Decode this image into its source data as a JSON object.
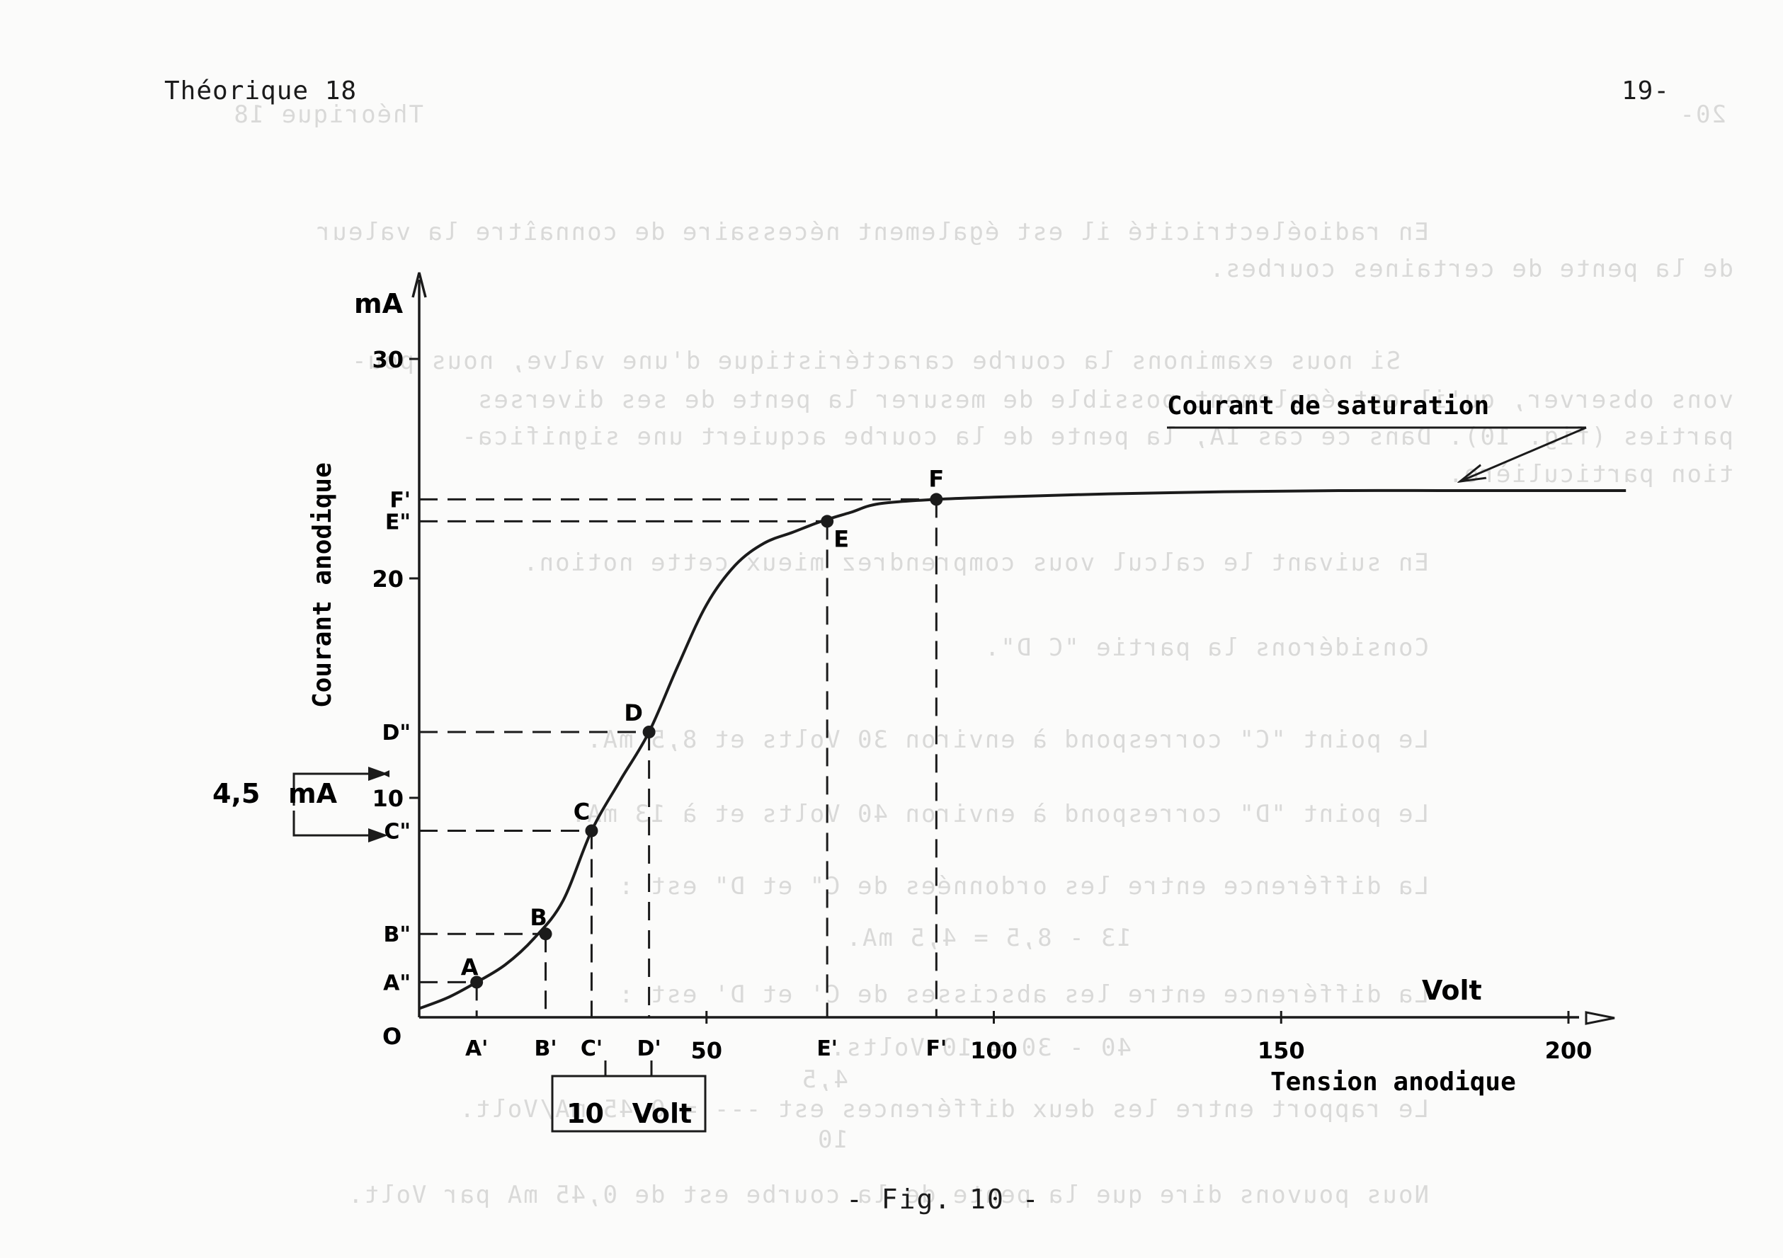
{
  "header": {
    "left": "Théorique 18",
    "right": "19-"
  },
  "bleedthrough": {
    "page_header_left": "Théorique 18",
    "page_header_right": "20-",
    "lines": [
      "En radioélectricité il est également nécessaire de connaître la valeur",
      "de la pente de certaines courbes.",
      "Si nous examinons la courbe caractéristique d'une valve, nous pou-",
      "vons observer, qu'il est également possible de mesurer la pente de ses diverses",
      "parties (fig. 10). Dans ce cas IA, la pente de la courbe acquiert une significa-",
      "tion particulière.",
      "En suivant le calcul vous comprendrez mieux cette notion.",
      "Considérons la partie \"C D\".",
      "Le point \"C\" correspond à environ 30 Volts et 8,5 mA.",
      "Le point \"D\" correspond à environ 40 Volts et à 13 mA.",
      "La différence entre les ordonnées de C\" et D\" est :",
      "13 - 8,5 = 4,5 mA.",
      "La différence entre les abscisses de C' et D' est :",
      "40 - 30 = 10 Volts.",
      "4,5",
      "Le rapport entre les deux différences est --- = 0,45 mA/Volt.",
      "10",
      "Nous pouvons dire que la pente de la courbe est de 0,45 mA par Volt."
    ]
  },
  "figure": {
    "caption": "- Fig. 10 -",
    "y_unit": "mA",
    "y_axis_title": "Courant anodique",
    "x_unit": "Volt",
    "x_axis_title": "Tension anodique",
    "origin_label": "O",
    "x_ticks": [
      "50",
      "100",
      "150",
      "200"
    ],
    "y_ticks": [
      "10",
      "20",
      "30"
    ],
    "saturation_label": "Courant de saturation",
    "delta_y_label": "4,5   mA",
    "delta_x_label": "10   Volt"
  },
  "chart_data": {
    "type": "line",
    "title": "",
    "xlabel": "Tension anodique",
    "ylabel": "Courant anodique",
    "x_unit": "Volt",
    "y_unit": "mA",
    "xlim": [
      0,
      210
    ],
    "ylim": [
      0,
      33
    ],
    "x_ticks": [
      50,
      100,
      150,
      200
    ],
    "y_ticks": [
      10,
      20,
      30
    ],
    "grid": false,
    "series": [
      {
        "name": "",
        "x": [
          0,
          5,
          10,
          15,
          20,
          25,
          30,
          35,
          40,
          45,
          50,
          55,
          60,
          65,
          70,
          75,
          80,
          90,
          100,
          120,
          140,
          160,
          180,
          200,
          210
        ],
        "y": [
          0.4,
          0.9,
          1.6,
          2.4,
          3.6,
          5.3,
          8.5,
          10.8,
          13.0,
          16.0,
          18.8,
          20.6,
          21.6,
          22.1,
          22.6,
          23.0,
          23.4,
          23.6,
          23.7,
          23.85,
          23.95,
          24.0,
          24.0,
          24.0,
          24.0
        ]
      }
    ],
    "points": [
      {
        "label": "A",
        "x": 10,
        "y": 1.6,
        "x_label": "A'",
        "y_label": "A\""
      },
      {
        "label": "B",
        "x": 22,
        "y": 3.8,
        "x_label": "B'",
        "y_label": "B\""
      },
      {
        "label": "C",
        "x": 30,
        "y": 8.5,
        "x_label": "C'",
        "y_label": "C\""
      },
      {
        "label": "D",
        "x": 40,
        "y": 13.0,
        "x_label": "D'",
        "y_label": "D\""
      },
      {
        "label": "E",
        "x": 71,
        "y": 22.6,
        "x_label": "E'",
        "y_label": "E\""
      },
      {
        "label": "F",
        "x": 90,
        "y": 23.6,
        "x_label": "F'",
        "y_label": "F'"
      }
    ],
    "annotations": [
      "Courant de saturation",
      "4,5   mA",
      "10   Volt"
    ]
  }
}
